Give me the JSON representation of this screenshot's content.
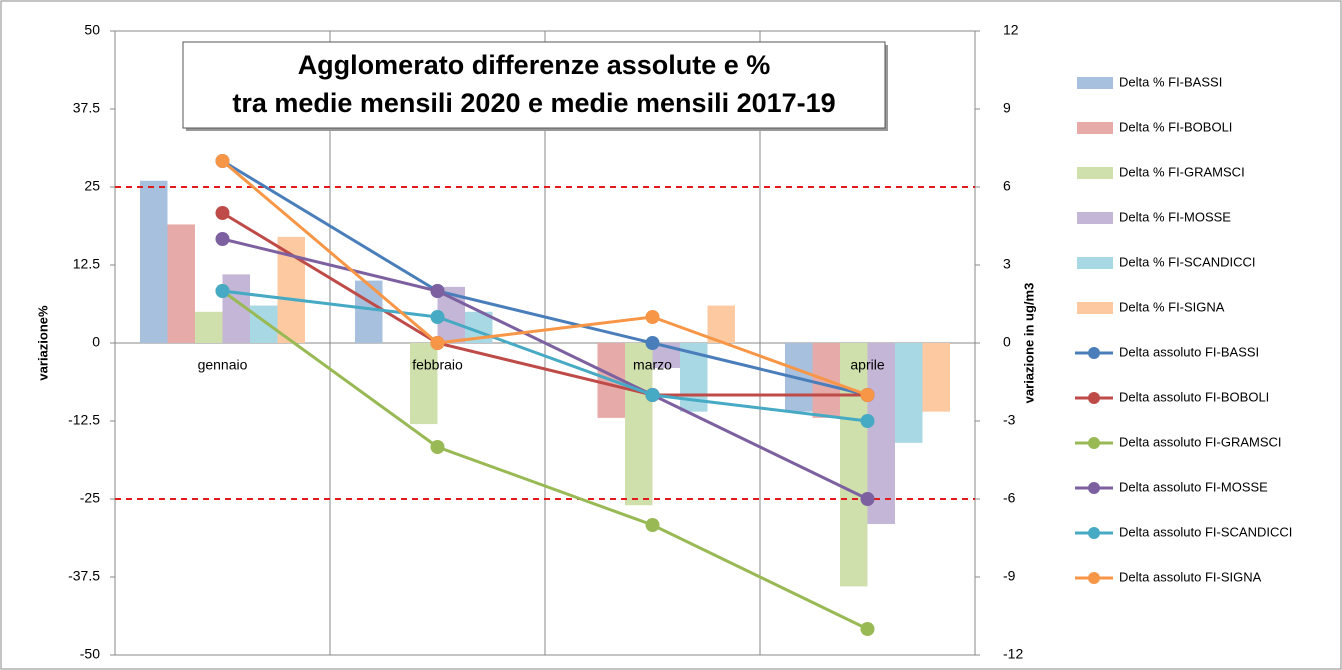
{
  "chart_data": {
    "type": "bar",
    "title": [
      "Agglomerato differenze assolute e %",
      "tra medie mensili 2020 e medie mensili 2017-19"
    ],
    "ylabel": "variazione%",
    "y2label": "variazione in ug/m3",
    "categories": [
      "gennaio",
      "febbraio",
      "marzo",
      "aprile"
    ],
    "ylim": [
      -50,
      50
    ],
    "yticks": [
      50,
      37.5,
      25,
      12.5,
      0,
      -12.5,
      -25,
      -37.5,
      -50
    ],
    "y2lim": [
      -12,
      12
    ],
    "y2ticks": [
      12,
      9,
      6,
      3,
      0,
      -3,
      -6,
      -9,
      -12
    ],
    "reference_lines": [
      25,
      -25
    ],
    "reference_color": "#e31a1c",
    "legend": "right",
    "series": [
      {
        "name": "Delta % FI-BASSI",
        "color": "#a7c0de",
        "values": [
          26,
          10,
          0,
          -11
        ]
      },
      {
        "name": "Delta % FI-BOBOLI",
        "color": "#e6aaa8",
        "values": [
          19,
          0,
          -12,
          -12
        ]
      },
      {
        "name": "Delta % FI-GRAMSCI",
        "color": "#cfe0ad",
        "values": [
          5,
          -13,
          -26,
          -39
        ]
      },
      {
        "name": "Delta % FI-MOSSE",
        "color": "#c3b6d6",
        "values": [
          11,
          9,
          -4,
          -29
        ]
      },
      {
        "name": "Delta % FI-SCANDICCI",
        "color": "#a8d8e4",
        "values": [
          6,
          5,
          -11,
          -16
        ]
      },
      {
        "name": "Delta % FI-SIGNA",
        "color": "#fcc9a0",
        "values": [
          17,
          0,
          6,
          -11
        ]
      },
      {
        "name": "Delta assoluto FI-BASSI",
        "type": "line",
        "axis": "y2",
        "color": "#4a7ebb",
        "values": [
          7,
          2,
          0,
          -2
        ]
      },
      {
        "name": "Delta assoluto FI-BOBOLI",
        "type": "line",
        "axis": "y2",
        "color": "#be4b48",
        "values": [
          5,
          0,
          -2,
          -2
        ]
      },
      {
        "name": "Delta assoluto FI-GRAMSCI",
        "type": "line",
        "axis": "y2",
        "color": "#98b954",
        "values": [
          2,
          -4,
          -7,
          -11
        ]
      },
      {
        "name": "Delta assoluto FI-MOSSE",
        "type": "line",
        "axis": "y2",
        "color": "#7d60a0",
        "values": [
          4,
          2,
          -2,
          -6
        ]
      },
      {
        "name": "Delta assoluto FI-SCANDICCI",
        "type": "line",
        "axis": "y2",
        "color": "#46aac5",
        "values": [
          2,
          1,
          -2,
          -3
        ]
      },
      {
        "name": "Delta assoluto FI-SIGNA",
        "type": "line",
        "axis": "y2",
        "color": "#f79646",
        "values": [
          7,
          0,
          1,
          -2
        ]
      }
    ]
  }
}
